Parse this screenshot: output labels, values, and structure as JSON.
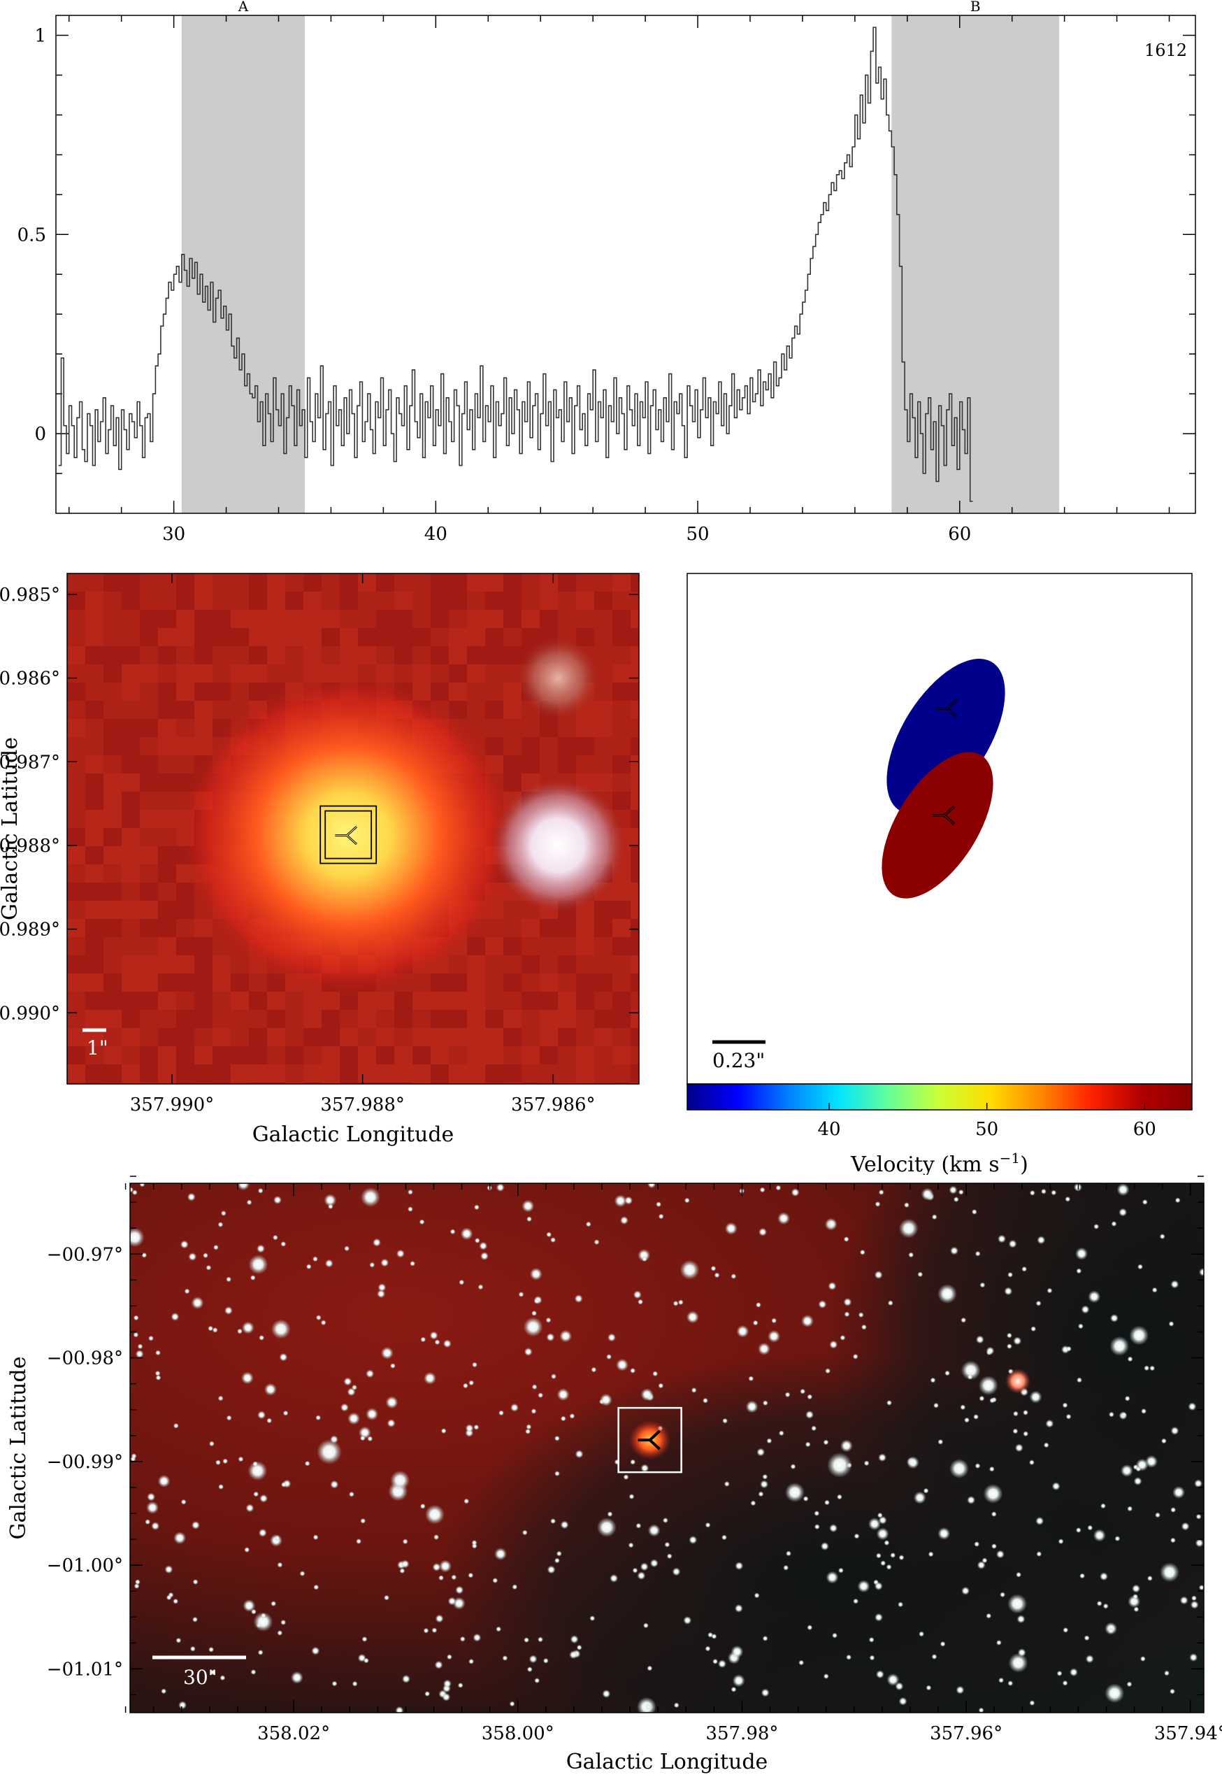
{
  "chart_data": [
    {
      "id": "spectrum",
      "type": "line",
      "style": "step",
      "title": "",
      "xlabel": "",
      "ylabel": "",
      "xlim": [
        25.5,
        69
      ],
      "ylim": [
        -0.2,
        1.05
      ],
      "x_ticks": [
        30,
        40,
        50,
        60
      ],
      "y_ticks": [
        0,
        0.5,
        1
      ],
      "x_tick_labels": [
        "30",
        "40",
        "50",
        "60"
      ],
      "y_tick_labels": [
        "0",
        "0.5",
        "1"
      ],
      "spectrum_label": "1612",
      "shaded_bands": [
        {
          "label": "A",
          "x_range": [
            30.3,
            35.0
          ],
          "color": "#cccccc"
        },
        {
          "label": "B",
          "x_range": [
            57.4,
            63.8
          ],
          "color": "#cccccc"
        }
      ],
      "line_color": "#333333",
      "series": [
        {
          "x_start": 25.6,
          "x_step": 0.1,
          "values": [
            -0.08,
            0.19,
            0.02,
            -0.05,
            0.07,
            0.02,
            -0.06,
            0.04,
            0.08,
            -0.04,
            -0.07,
            0.05,
            0.02,
            -0.08,
            0.06,
            -0.02,
            0.03,
            0.09,
            -0.05,
            0.01,
            0.07,
            -0.03,
            0.04,
            -0.09,
            0.06,
            0.01,
            -0.04,
            0.05,
            0.03,
            -0.01,
            0.08,
            0.02,
            -0.06,
            0.04,
            0.05,
            -0.02,
            0.1,
            0.17,
            0.2,
            0.27,
            0.3,
            0.34,
            0.38,
            0.36,
            0.4,
            0.42,
            0.38,
            0.45,
            0.41,
            0.37,
            0.44,
            0.39,
            0.43,
            0.35,
            0.4,
            0.33,
            0.37,
            0.31,
            0.38,
            0.28,
            0.34,
            0.36,
            0.29,
            0.32,
            0.26,
            0.3,
            0.22,
            0.19,
            0.24,
            0.16,
            0.2,
            0.12,
            0.15,
            0.1,
            0.09,
            0.12,
            0.03,
            0.08,
            -0.03,
            0.1,
            0.05,
            -0.02,
            0.14,
            0.06,
            0.02,
            0.1,
            -0.05,
            0.04,
            0.12,
            0.07,
            -0.03,
            0.11,
            0.02,
            0.06,
            -0.06,
            0.14,
            0.03,
            -0.02,
            0.1,
            0.04,
            0.17,
            -0.04,
            0.05,
            0.08,
            -0.08,
            0.12,
            0.02,
            0.06,
            -0.03,
            0.09,
            0.0,
            0.11,
            0.05,
            -0.06,
            0.07,
            0.13,
            -0.02,
            0.03,
            0.1,
            0.01,
            -0.05,
            0.08,
            0.04,
            0.14,
            -0.03,
            0.06,
            0.11,
            0.0,
            -0.07,
            0.09,
            0.05,
            0.02,
            0.12,
            -0.04,
            0.07,
            0.16,
            0.03,
            -0.01,
            0.1,
            -0.06,
            0.08,
            0.04,
            0.12,
            -0.03,
            0.06,
            0.02,
            0.15,
            -0.05,
            0.09,
            0.03,
            -0.02,
            0.11,
            0.07,
            -0.08,
            0.05,
            0.13,
            0.01,
            0.06,
            -0.04,
            0.1,
            0.04,
            0.17,
            -0.02,
            0.07,
            0.03,
            0.12,
            -0.06,
            0.08,
            0.02,
            0.05,
            0.14,
            -0.03,
            0.09,
            0.0,
            0.11,
            0.06,
            -0.05,
            0.08,
            0.03,
            0.13,
            -0.01,
            0.07,
            0.1,
            -0.04,
            0.05,
            0.15,
            0.02,
            0.08,
            -0.07,
            0.11,
            0.04,
            0.06,
            -0.02,
            0.13,
            0.03,
            0.09,
            -0.05,
            0.07,
            0.12,
            0.01,
            0.05,
            -0.03,
            0.1,
            0.06,
            0.16,
            -0.02,
            0.08,
            0.04,
            0.11,
            -0.06,
            0.07,
            0.03,
            0.14,
            0.0,
            0.09,
            0.05,
            -0.04,
            0.12,
            0.06,
            0.02,
            0.1,
            -0.03,
            0.08,
            0.04,
            0.13,
            -0.05,
            0.07,
            0.11,
            0.01,
            0.06,
            -0.02,
            0.09,
            0.03,
            0.15,
            -0.04,
            0.08,
            0.05,
            0.1,
            0.02,
            -0.06,
            0.12,
            0.07,
            0.03,
            0.11,
            -0.01,
            0.06,
            0.14,
            0.04,
            0.09,
            -0.03,
            0.08,
            0.05,
            0.13,
            0.02,
            0.1,
            0.0,
            0.07,
            0.15,
            0.04,
            0.11,
            0.06,
            0.09,
            0.12,
            0.05,
            0.14,
            0.08,
            0.1,
            0.16,
            0.07,
            0.13,
            0.11,
            0.15,
            0.09,
            0.18,
            0.12,
            0.14,
            0.2,
            0.16,
            0.22,
            0.19,
            0.24,
            0.27,
            0.25,
            0.3,
            0.33,
            0.36,
            0.4,
            0.44,
            0.47,
            0.5,
            0.53,
            0.55,
            0.58,
            0.56,
            0.6,
            0.63,
            0.61,
            0.65,
            0.66,
            0.64,
            0.68,
            0.7,
            0.67,
            0.72,
            0.8,
            0.74,
            0.85,
            0.78,
            0.9,
            0.83,
            0.96,
            1.02,
            0.88,
            0.92,
            0.84,
            0.89,
            0.8,
            0.76,
            0.72,
            0.65,
            0.55,
            0.42,
            0.18,
            0.06,
            -0.02,
            0.1,
            0.04,
            -0.06,
            0.08,
            0.0,
            -0.1,
            0.05,
            0.09,
            -0.04,
            0.03,
            -0.12,
            0.07,
            0.02,
            -0.08,
            0.06,
            0.1,
            -0.03,
            0.04,
            -0.09,
            0.08,
            0.01,
            -0.05,
            0.09,
            -0.17
          ]
        }
      ]
    },
    {
      "id": "zoom-map",
      "type": "heatmap",
      "title": "",
      "xlabel": "Galactic Longitude",
      "ylabel": "Galactic Latitude",
      "xlim": [
        357.9911,
        357.9851
      ],
      "ylim": [
        -0.99085,
        -0.98475
      ],
      "x_tick_labels": [
        "357.990°",
        "357.988°",
        "357.986°"
      ],
      "x_ticks": [
        357.99,
        357.988,
        357.986
      ],
      "y_tick_labels": [
        "−00.985°",
        "−00.986°",
        "−00.987°",
        "−00.988°",
        "−00.989°",
        "−00.990°"
      ],
      "y_ticks": [
        -0.985,
        -0.986,
        -0.987,
        -0.988,
        -0.989,
        -0.99
      ],
      "scale_bar_label": "1\"",
      "marker_position": [
        357.98815,
        -0.98788
      ],
      "sources": [
        {
          "name": "maser-host",
          "l": 357.98815,
          "b": -0.98788,
          "color": "#fff27a"
        },
        {
          "name": "bright-star",
          "l": 357.98595,
          "b": -0.988,
          "color": "#fff0f6"
        },
        {
          "name": "faint-star",
          "l": 357.98595,
          "b": -0.986,
          "color": "#d9a39a"
        }
      ]
    },
    {
      "id": "velocity-map",
      "type": "scatter",
      "title": "",
      "xlabel": "",
      "colorbar_label": "Velocity (km s",
      "colorbar_label_exponent": "−1",
      "colorbar_label_suffix": ")",
      "colorbar_range": [
        31,
        63
      ],
      "colorbar_ticks": [
        40,
        50,
        60
      ],
      "colorbar_tick_labels": [
        "40",
        "50",
        "60"
      ],
      "colorbar_colors": [
        "#00008b",
        "#0000ff",
        "#0080ff",
        "#00e5ff",
        "#66ff99",
        "#ccff33",
        "#ffdd00",
        "#ff8800",
        "#ff2200",
        "#b00000",
        "#8b0000"
      ],
      "scale_bar_label": "0.23\"",
      "features": [
        {
          "name": "Blue component",
          "velocity": 31.5,
          "color": "#00008b"
        },
        {
          "name": "Red component",
          "velocity": 62.0,
          "color": "#8b0000"
        }
      ]
    },
    {
      "id": "wide-map",
      "type": "heatmap",
      "title": "",
      "xlabel": "Galactic Longitude",
      "ylabel": "Galactic Latitude",
      "xlim": [
        358.0346,
        357.9388
      ],
      "ylim": [
        -1.01422,
        -0.96317
      ],
      "x_ticks": [
        358.02,
        358.0,
        357.98,
        357.96,
        357.94
      ],
      "x_tick_labels": [
        "358.02°",
        "358.00°",
        "357.98°",
        "357.96°",
        "357.94°"
      ],
      "y_ticks": [
        -0.97,
        -0.98,
        -0.99,
        -1.0,
        -1.01
      ],
      "y_tick_labels": [
        "−00.97°",
        "−00.98°",
        "−00.99°",
        "−01.00°",
        "−01.01°"
      ],
      "scale_bar_label": "30\"",
      "marker_position": [
        357.98822,
        -0.98793
      ]
    }
  ]
}
